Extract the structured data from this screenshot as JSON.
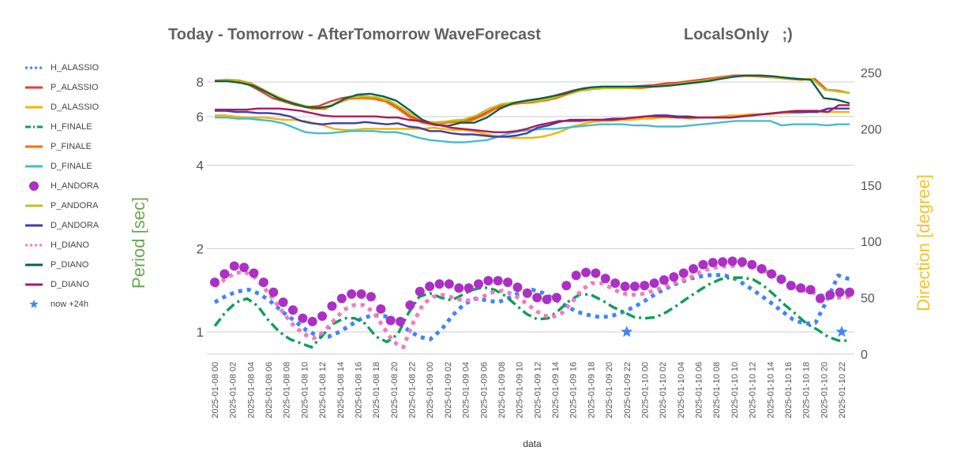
{
  "header": {
    "title": "Today - Tomorrow - AfterTomorrow WaveForecast",
    "subtitle": "LocalsOnly   ;)"
  },
  "colors": {
    "H_ALASSIO": "#4285f4",
    "P_ALASSIO": "#db4437",
    "D_ALASSIO": "#f4b400",
    "H_FINALE": "#0f9d58",
    "P_FINALE": "#ff6d01",
    "D_FINALE": "#46bdc6",
    "H_ANDORA": "#ab30c4",
    "P_ANDORA": "#b8c41e",
    "D_ANDORA": "#3b3eac",
    "H_DIANO": "#f07bbf",
    "P_DIANO": "#0b6147",
    "D_DIANO": "#b0175e",
    "now": "#4285f4"
  },
  "chart_data": {
    "type": "line",
    "title": "Today - Tomorrow - AfterTomorrow WaveForecast",
    "subtitle": "LocalsOnly   ;)",
    "xlabel": "data",
    "ylabel_left": "Period [sec]",
    "ylabel_right": "Direction [degree]",
    "left_axis": {
      "scale": "log",
      "ticks": [
        1,
        2,
        4,
        6,
        8
      ],
      "range": [
        0.9,
        9.2
      ]
    },
    "right_axis": {
      "scale": "linear",
      "ticks": [
        0,
        50,
        100,
        150,
        200,
        250
      ],
      "range": [
        0,
        250
      ]
    },
    "grid": true,
    "legend_position": "left",
    "x_ticks": [
      "2025-01-08 00",
      "2025-01-08 02",
      "2025-01-08 04",
      "2025-01-08 06",
      "2025-01-08 08",
      "2025-01-08 10",
      "2025-01-08 12",
      "2025-01-08 14",
      "2025-01-08 16",
      "2025-01-08 18",
      "2025-01-08 20",
      "2025-01-08 22",
      "2025-01-09 00",
      "2025-01-09 02",
      "2025-01-09 04",
      "2025-01-09 06",
      "2025-01-09 08",
      "2025-01-09 10",
      "2025-01-09 12",
      "2025-01-09 14",
      "2025-01-09 16",
      "2025-01-09 18",
      "2025-01-09 20",
      "2025-01-09 22",
      "2025-01-10 00",
      "2025-01-10 02",
      "2025-01-10 04",
      "2025-01-10 06",
      "2025-01-10 08",
      "2025-01-10 10",
      "2025-01-10 12",
      "2025-01-10 14",
      "2025-01-10 16",
      "2025-01-10 18",
      "2025-01-10 20",
      "2025-01-10 22"
    ],
    "series": [
      {
        "name": "H_ALASSIO",
        "axis": "left",
        "style": "dotted",
        "values": [
          1.28,
          1.35,
          1.4,
          1.42,
          1.37,
          1.28,
          1.18,
          1.1,
          1.02,
          0.97,
          0.96,
          1.0,
          1.06,
          1.12,
          1.15,
          1.14,
          1.09,
          1.02,
          0.96,
          0.94,
          1.02,
          1.15,
          1.26,
          1.32,
          1.3,
          1.28,
          1.33,
          1.39,
          1.42,
          1.38,
          1.31,
          1.24,
          1.18,
          1.15,
          1.13,
          1.14,
          1.18,
          1.23,
          1.3,
          1.38,
          1.45,
          1.51,
          1.56,
          1.59,
          1.61,
          1.6,
          1.55,
          1.46,
          1.37,
          1.28,
          1.19,
          1.11,
          1.07,
          1.08,
          1.3,
          1.6,
          1.55
        ]
      },
      {
        "name": "P_ALASSIO",
        "axis": "left",
        "values": [
          8.1,
          8.1,
          8.0,
          7.8,
          7.4,
          7.0,
          6.8,
          6.6,
          6.5,
          6.55,
          6.8,
          7.0,
          7.1,
          7.1,
          7.0,
          6.8,
          6.4,
          6.0,
          5.75,
          5.7,
          5.75,
          5.8,
          5.85,
          6.05,
          6.35,
          6.6,
          6.75,
          6.85,
          6.95,
          7.05,
          7.25,
          7.45,
          7.6,
          7.65,
          7.65,
          7.65,
          7.7,
          7.75,
          7.8,
          7.9,
          7.95,
          8.05,
          8.15,
          8.25,
          8.35,
          8.45,
          8.45,
          8.45,
          8.4,
          8.3,
          8.25,
          8.2,
          8.2,
          7.5,
          7.45,
          7.3
        ]
      },
      {
        "name": "D_ALASSIO",
        "axis": "right",
        "values": [
          212,
          212,
          211,
          210,
          210,
          210,
          209,
          208,
          208,
          207,
          205,
          203,
          200,
          199,
          199,
          200,
          200,
          200,
          200,
          200,
          200,
          200,
          201,
          200,
          199,
          199,
          198,
          196,
          194,
          193,
          192,
          192,
          192,
          193,
          195,
          198,
          202,
          204,
          206,
          207,
          207,
          208,
          208,
          209,
          209,
          210,
          210,
          210,
          209,
          210,
          210,
          211,
          212,
          212,
          213,
          213,
          213,
          214,
          214,
          214,
          215,
          215,
          215,
          215,
          215
        ]
      },
      {
        "name": "H_FINALE",
        "axis": "left",
        "style": "dashdot",
        "values": [
          1.05,
          1.18,
          1.28,
          1.32,
          1.24,
          1.1,
          1.0,
          0.94,
          0.91,
          0.88,
          0.97,
          1.07,
          1.12,
          1.12,
          1.07,
          0.96,
          0.92,
          0.98,
          1.17,
          1.34,
          1.38,
          1.33,
          1.3,
          1.36,
          1.42,
          1.45,
          1.42,
          1.35,
          1.25,
          1.16,
          1.11,
          1.12,
          1.2,
          1.3,
          1.37,
          1.36,
          1.3,
          1.23,
          1.18,
          1.13,
          1.12,
          1.13,
          1.18,
          1.25,
          1.33,
          1.41,
          1.49,
          1.55,
          1.57,
          1.57,
          1.55,
          1.47,
          1.36,
          1.25,
          1.16,
          1.07,
          1.02,
          0.96,
          0.93,
          0.93
        ]
      },
      {
        "name": "P_FINALE",
        "axis": "left",
        "values": [
          8.1,
          8.15,
          8.1,
          7.9,
          7.5,
          7.05,
          6.75,
          6.55,
          6.4,
          6.4,
          6.7,
          6.95,
          7.0,
          6.95,
          6.8,
          6.4,
          5.95,
          5.7,
          5.6,
          5.7,
          5.75,
          5.8,
          6.05,
          6.4,
          6.6,
          6.7,
          6.75,
          6.85,
          7.0,
          7.25,
          7.45,
          7.55,
          7.6,
          7.6,
          7.6,
          7.6,
          7.7,
          7.8,
          7.9,
          8.0,
          8.1,
          8.25,
          8.35,
          8.4,
          8.4,
          8.35,
          8.3,
          8.2,
          8.15,
          8.2,
          7.5,
          7.45,
          7.3
        ]
      },
      {
        "name": "D_FINALE",
        "axis": "right",
        "values": [
          210,
          210,
          209,
          209,
          208,
          207,
          205,
          201,
          197,
          196,
          196,
          197,
          198,
          198,
          198,
          197,
          197,
          195,
          192,
          190,
          189,
          188,
          188,
          189,
          190,
          193,
          196,
          198,
          199,
          200,
          200,
          201,
          202,
          203,
          204,
          204,
          204,
          203,
          203,
          202,
          202,
          202,
          203,
          204,
          205,
          206,
          207,
          207,
          207,
          207,
          203,
          204,
          204,
          204,
          203,
          204,
          204
        ]
      },
      {
        "name": "H_ANDORA",
        "axis": "left",
        "style": "points",
        "values": [
          1.51,
          1.62,
          1.73,
          1.71,
          1.63,
          1.51,
          1.39,
          1.28,
          1.2,
          1.12,
          1.09,
          1.14,
          1.24,
          1.32,
          1.37,
          1.37,
          1.34,
          1.21,
          1.1,
          1.09,
          1.25,
          1.4,
          1.46,
          1.49,
          1.49,
          1.44,
          1.44,
          1.49,
          1.53,
          1.53,
          1.51,
          1.45,
          1.38,
          1.33,
          1.31,
          1.33,
          1.47,
          1.6,
          1.64,
          1.63,
          1.56,
          1.5,
          1.46,
          1.46,
          1.47,
          1.5,
          1.54,
          1.58,
          1.63,
          1.69,
          1.75,
          1.78,
          1.79,
          1.8,
          1.79,
          1.75,
          1.69,
          1.62,
          1.55,
          1.47,
          1.44,
          1.42,
          1.32,
          1.36,
          1.39,
          1.39
        ]
      },
      {
        "name": "P_ANDORA",
        "axis": "left",
        "values": [
          8.05,
          8.1,
          8.05,
          7.85,
          7.45,
          7.1,
          6.8,
          6.6,
          6.45,
          6.5,
          6.8,
          7.05,
          7.1,
          7.05,
          6.85,
          6.45,
          6.05,
          5.75,
          5.7,
          5.8,
          5.85,
          6.05,
          6.4,
          6.65,
          6.75,
          6.8,
          6.85,
          7.0,
          7.2,
          7.4,
          7.55,
          7.6,
          7.6,
          7.6,
          7.65,
          7.7,
          7.75,
          7.85,
          7.95,
          8.05,
          8.15,
          8.3,
          8.4,
          8.45,
          8.45,
          8.35,
          8.25,
          8.2,
          8.2,
          7.5,
          7.4,
          7.3
        ]
      },
      {
        "name": "D_ANDORA",
        "axis": "right",
        "values": [
          216,
          216,
          215,
          215,
          214,
          214,
          213,
          211,
          207,
          205,
          204,
          205,
          205,
          205,
          206,
          205,
          204,
          205,
          202,
          201,
          198,
          198,
          196,
          195,
          195,
          194,
          193,
          193,
          194,
          196,
          201,
          203,
          206,
          208,
          208,
          208,
          208,
          209,
          209,
          210,
          211,
          212,
          212,
          211,
          211,
          210,
          210,
          210,
          210,
          211,
          212,
          213,
          214,
          215,
          215,
          215,
          215,
          218,
          218,
          218
        ]
      },
      {
        "name": "H_DIANO",
        "axis": "left",
        "style": "dotted",
        "values": [
          1.46,
          1.55,
          1.63,
          1.65,
          1.58,
          1.44,
          1.3,
          1.16,
          1.05,
          0.98,
          0.95,
          1.0,
          1.1,
          1.2,
          1.25,
          1.25,
          1.18,
          1.04,
          0.92,
          0.88,
          1.08,
          1.26,
          1.34,
          1.36,
          1.33,
          1.3,
          1.3,
          1.34,
          1.39,
          1.41,
          1.37,
          1.3,
          1.22,
          1.15,
          1.13,
          1.17,
          1.28,
          1.42,
          1.5,
          1.5,
          1.44,
          1.38,
          1.36,
          1.37,
          1.4,
          1.44,
          1.49,
          1.53,
          1.58,
          1.65,
          1.7,
          1.72,
          1.73,
          1.74,
          1.73,
          1.69,
          1.63,
          1.56,
          1.5,
          1.42,
          1.4,
          1.36,
          1.33,
          1.33,
          1.34
        ]
      },
      {
        "name": "P_DIANO",
        "axis": "left",
        "values": [
          8.05,
          8.05,
          7.95,
          7.75,
          7.35,
          6.95,
          6.7,
          6.5,
          6.45,
          6.55,
          6.95,
          7.2,
          7.25,
          7.1,
          6.85,
          6.35,
          5.85,
          5.6,
          5.55,
          5.7,
          5.7,
          5.95,
          6.4,
          6.7,
          6.85,
          6.95,
          7.1,
          7.25,
          7.5,
          7.65,
          7.7,
          7.7,
          7.7,
          7.7,
          7.7,
          7.75,
          7.85,
          7.95,
          8.05,
          8.2,
          8.35,
          8.45,
          8.45,
          8.4,
          8.3,
          8.2,
          8.15,
          7.0,
          6.9,
          6.7
        ]
      },
      {
        "name": "D_DIANO",
        "axis": "right",
        "values": [
          217,
          217,
          217,
          217,
          218,
          218,
          218,
          217,
          216,
          214,
          212,
          211,
          211,
          211,
          211,
          211,
          210,
          210,
          208,
          207,
          205,
          203,
          201,
          200,
          199,
          198,
          197,
          197,
          198,
          200,
          203,
          205,
          207,
          207,
          207,
          208,
          208,
          208,
          209,
          210,
          211,
          211,
          211,
          210,
          210,
          210,
          210,
          210,
          210,
          211,
          212,
          213,
          214,
          215,
          216,
          216,
          216,
          215,
          221,
          221
        ]
      },
      {
        "name": "now +24h",
        "axis": "left",
        "style": "star",
        "x": [
          "2025-01-09 22",
          "2025-01-10 22"
        ],
        "values": [
          1.0,
          1.0
        ]
      }
    ]
  }
}
